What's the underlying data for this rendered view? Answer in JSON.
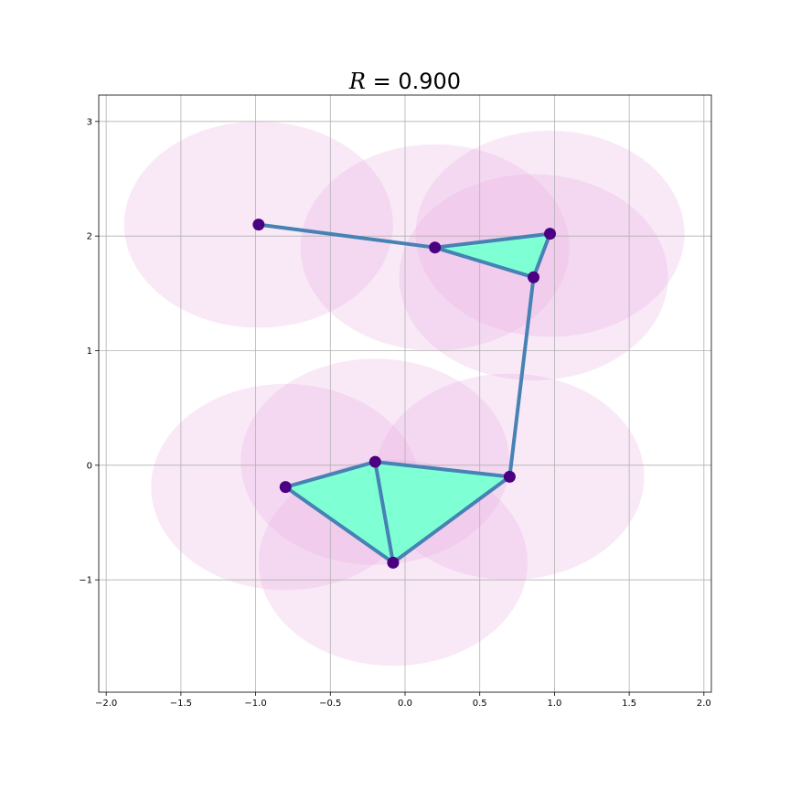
{
  "chart_data": {
    "type": "scatter",
    "title_prefix": "R",
    "title_value": " = 0.900",
    "radius": 0.9,
    "xlim": [
      -2.05,
      2.05
    ],
    "ylim": [
      -1.98,
      3.23
    ],
    "x_ticks": [
      -2.0,
      -1.5,
      -1.0,
      -0.5,
      0.0,
      0.5,
      1.0,
      1.5,
      2.0
    ],
    "x_tick_labels": [
      "−2.0",
      "−1.5",
      "−1.0",
      "−0.5",
      "0.0",
      "0.5",
      "1.0",
      "1.5",
      "2.0"
    ],
    "y_ticks": [
      -1,
      0,
      1,
      2,
      3
    ],
    "y_tick_labels": [
      "−1",
      "0",
      "1",
      "2",
      "3"
    ],
    "grid": true,
    "points": [
      {
        "x": -0.98,
        "y": 2.1
      },
      {
        "x": 0.2,
        "y": 1.9
      },
      {
        "x": 0.97,
        "y": 2.02
      },
      {
        "x": 0.86,
        "y": 1.64
      },
      {
        "x": 0.7,
        "y": -0.1
      },
      {
        "x": -0.2,
        "y": 0.03
      },
      {
        "x": -0.8,
        "y": -0.19
      },
      {
        "x": -0.08,
        "y": -0.85
      }
    ],
    "edges": [
      [
        0,
        1
      ],
      [
        1,
        2
      ],
      [
        1,
        3
      ],
      [
        2,
        3
      ],
      [
        3,
        4
      ],
      [
        4,
        5
      ],
      [
        4,
        7
      ],
      [
        5,
        6
      ],
      [
        5,
        7
      ],
      [
        6,
        7
      ]
    ],
    "triangles": [
      [
        1,
        2,
        3
      ],
      [
        4,
        5,
        7
      ],
      [
        5,
        6,
        7
      ]
    ],
    "colors": {
      "disk_fill": "#e8a6de",
      "triangle_fill": "#7fffd4",
      "edge": "#4682b4",
      "point": "#4b0082",
      "grid": "#b0b0b0"
    }
  }
}
